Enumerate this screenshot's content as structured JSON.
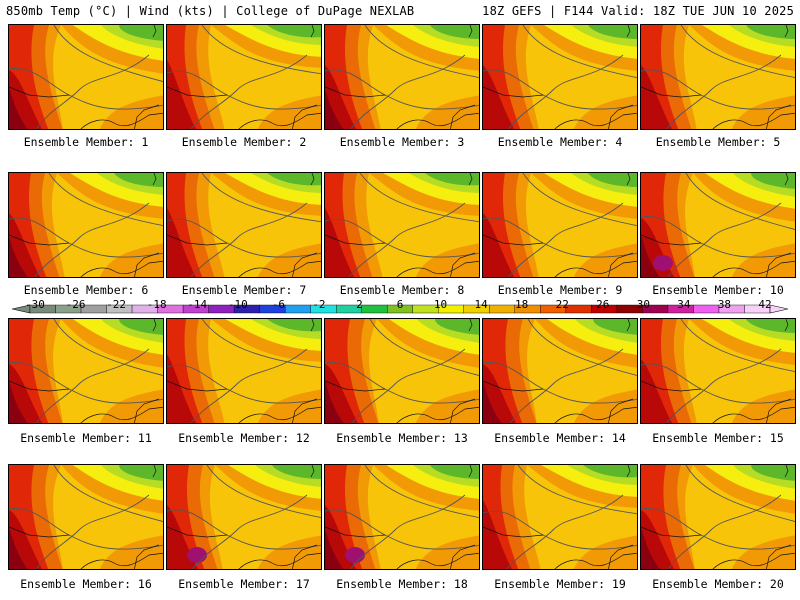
{
  "header": {
    "left": "850mb Temp (°C) | Wind (kts) | College of DuPage NEXLAB",
    "right": "18Z GEFS | F144 Valid: 18Z TUE JUN 10 2025"
  },
  "panels": [
    "Ensemble Member: 1",
    "Ensemble Member: 2",
    "Ensemble Member: 3",
    "Ensemble Member: 4",
    "Ensemble Member: 5",
    "Ensemble Member: 6",
    "Ensemble Member: 7",
    "Ensemble Member: 8",
    "Ensemble Member: 9",
    "Ensemble Member: 10",
    "Ensemble Member: 11",
    "Ensemble Member: 12",
    "Ensemble Member: 13",
    "Ensemble Member: 14",
    "Ensemble Member: 15",
    "Ensemble Member: 16",
    "Ensemble Member: 17",
    "Ensemble Member: 18",
    "Ensemble Member: 19",
    "Ensemble Member: 20"
  ],
  "colorbar": {
    "labels": [
      "-30",
      "-26",
      "-22",
      "-18",
      "-14",
      "-10",
      "-6",
      "-2",
      "2",
      "6",
      "10",
      "14",
      "18",
      "22",
      "26",
      "30",
      "34",
      "38",
      "42"
    ],
    "colors": [
      "#7a8a7a",
      "#8aa08a",
      "#a0a0a0",
      "#c0c0c0",
      "#e0b0e8",
      "#e070e0",
      "#c040d0",
      "#9020c0",
      "#3020b0",
      "#2040e0",
      "#20a0f0",
      "#20e0e0",
      "#20d0a0",
      "#20c040",
      "#80c020",
      "#c0e020",
      "#f0f000",
      "#f0d000",
      "#f0b000",
      "#f09000",
      "#f06000",
      "#e03000",
      "#c00000",
      "#900000",
      "#a00050",
      "#d020a0",
      "#f060f0",
      "#f0a0f0",
      "#f8d0f8"
    ]
  },
  "fields": {
    "colors": {
      "green": "#5cb82a",
      "yellowgreen": "#b6dc24",
      "yellow": "#f5ee0f",
      "lightorange": "#f7c40a",
      "orange": "#f29a06",
      "darkorange": "#ea6a06",
      "red": "#e02808",
      "darkred": "#b80808",
      "maroon": "#8a0010",
      "magenta": "#a01070"
    }
  }
}
